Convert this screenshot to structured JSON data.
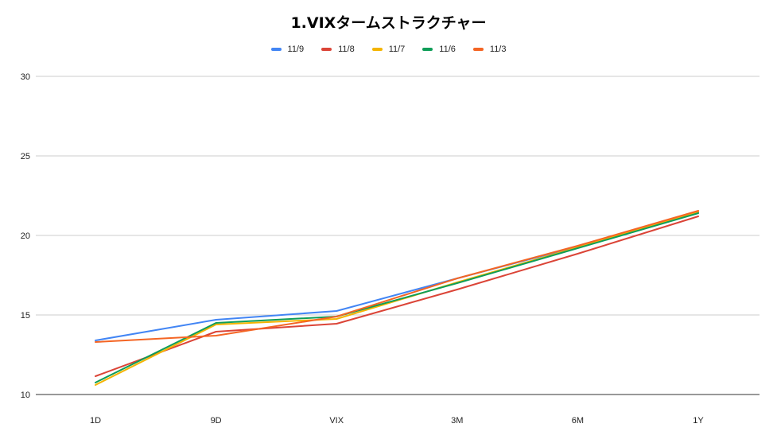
{
  "chart_data": {
    "type": "line",
    "title": "1.VIXタームストラクチャー",
    "xlabel": "",
    "ylabel": "",
    "categories": [
      "1D",
      "9D",
      "VIX",
      "3M",
      "6M",
      "1Y"
    ],
    "yticks": [
      10,
      15,
      20,
      25,
      30
    ],
    "ylim": [
      10,
      30
    ],
    "grid": true,
    "legend_position": "top",
    "series": [
      {
        "name": "11/9",
        "color": "#4285F4",
        "values": [
          13.4,
          14.7,
          15.25,
          17.3,
          19.3,
          21.45
        ]
      },
      {
        "name": "11/8",
        "color": "#DB4437",
        "values": [
          11.15,
          13.95,
          14.45,
          16.6,
          18.85,
          21.2
        ]
      },
      {
        "name": "11/7",
        "color": "#F4B400",
        "values": [
          10.6,
          14.4,
          14.75,
          17.05,
          19.25,
          21.5
        ]
      },
      {
        "name": "11/6",
        "color": "#0F9D58",
        "values": [
          10.75,
          14.5,
          14.9,
          17.0,
          19.2,
          21.4
        ]
      },
      {
        "name": "11/3",
        "color": "#F46524",
        "values": [
          13.3,
          13.7,
          14.9,
          17.3,
          19.35,
          21.55
        ]
      }
    ]
  }
}
